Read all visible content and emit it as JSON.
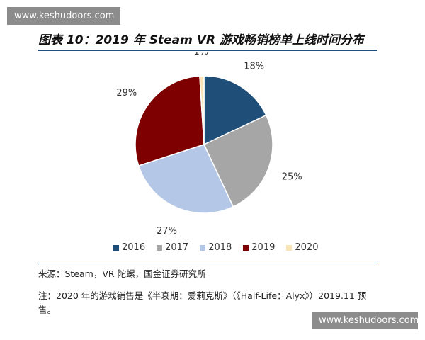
{
  "watermark_text": "www.keshudoors.com",
  "figure_title": "图表 10：2019 年 Steam VR 游戏畅销榜单上线时间分布",
  "chart_data": {
    "type": "pie",
    "title": "",
    "slices": [
      {
        "label": "2016",
        "value": 18,
        "display": "18%",
        "color": "#1f4e79"
      },
      {
        "label": "2017",
        "value": 25,
        "display": "25%",
        "color": "#a6a6a6"
      },
      {
        "label": "2018",
        "value": 27,
        "display": "27%",
        "color": "#b4c7e7"
      },
      {
        "label": "2019",
        "value": 29,
        "display": "29%",
        "color": "#7f0000"
      },
      {
        "label": "2020",
        "value": 1,
        "display": "1%",
        "color": "#f8e3b5"
      }
    ],
    "legend_position": "bottom"
  },
  "source_text": "来源：Steam，VR 陀螺，国金证券研究所",
  "note_text": "注：2020 年的游戏销售是《半衰期：爱莉克斯》（《Half-Life：Alyx》）2019.11 预售。"
}
